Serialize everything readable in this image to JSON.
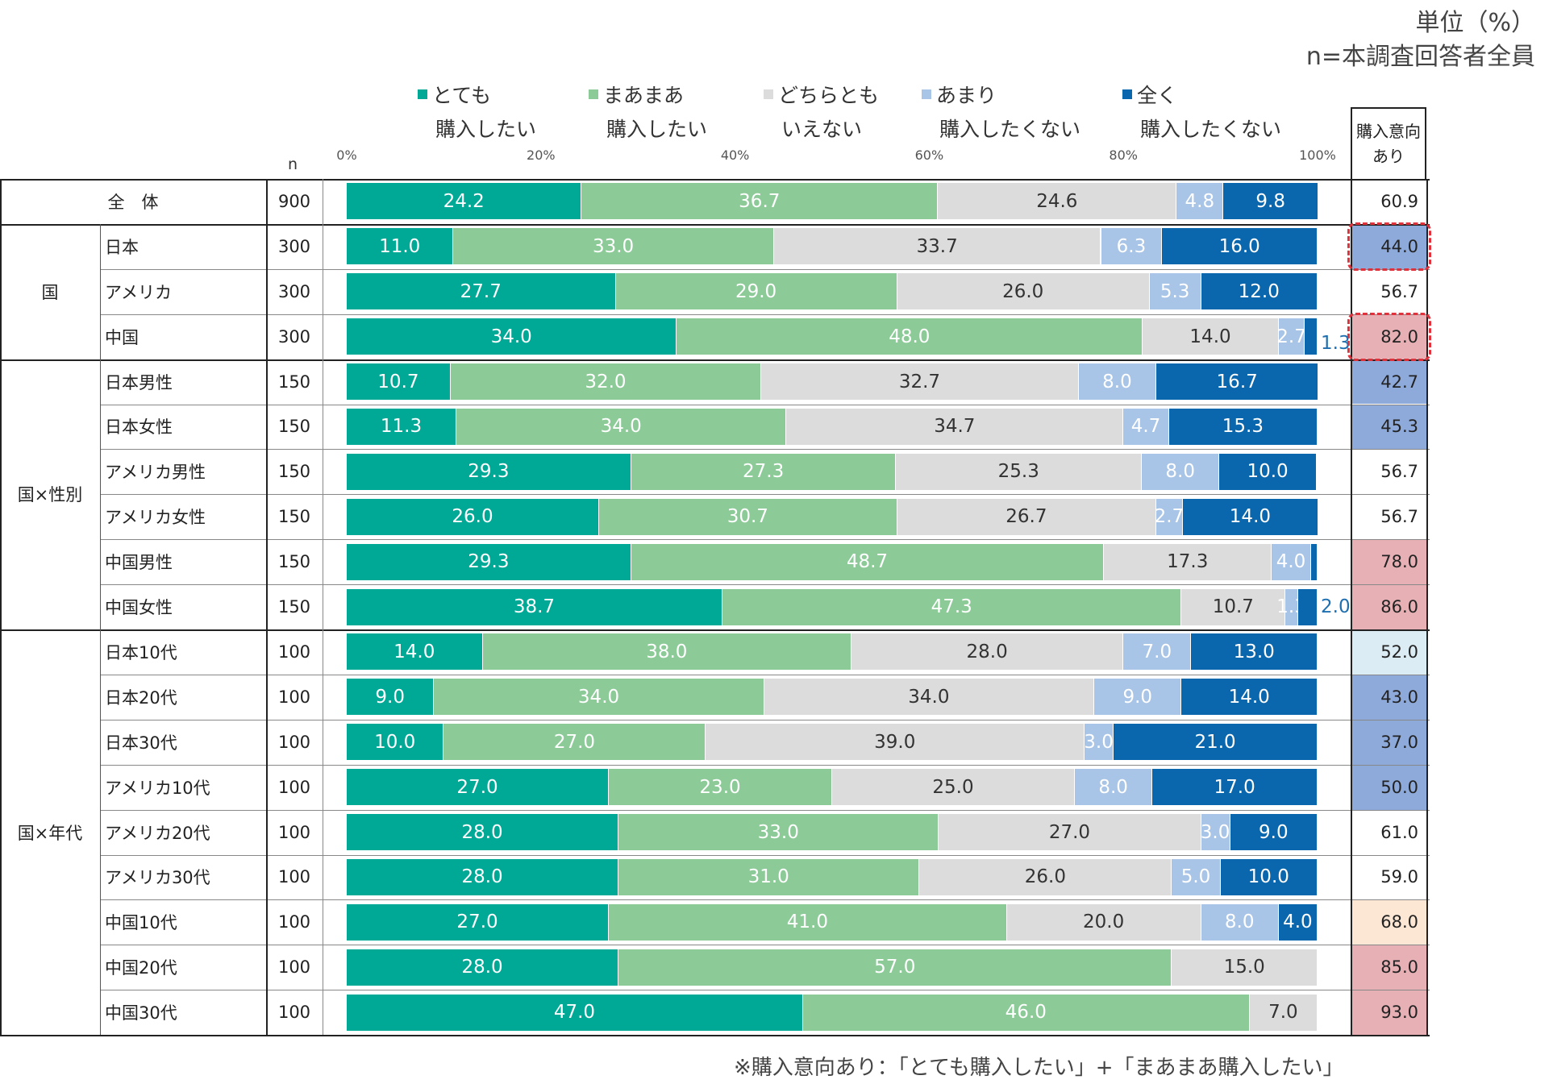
{
  "unit_note": [
    "単位（%）",
    "n=本調査回答者全員"
  ],
  "footnote": "※購入意向あり：「とても購入したい」+「まあまあ購入したい」",
  "intent_header": [
    "購入意向",
    "あり"
  ],
  "n_label": "n",
  "colors": {
    "very": "#00a896",
    "somewhat": "#8ccb98",
    "neutral": "#dcdcdc",
    "not_much": "#a8c4e6",
    "not_at_all": "#0a67ad",
    "intent_blue_dark": "#8eaadb",
    "intent_blue_light": "#dcecf4",
    "intent_red": "#e6b0b5",
    "intent_orange": "#fce7d5",
    "dashed_highlight": "#e0323c"
  },
  "chart_data": {
    "type": "bar",
    "orientation": "horizontal",
    "stacked": true,
    "percent_axis": true,
    "xlim": [
      0,
      100
    ],
    "x_ticks": [
      "0%",
      "20%",
      "40%",
      "60%",
      "80%",
      "100%"
    ],
    "legend": [
      {
        "line1": "とても",
        "line2": "購入したい",
        "color": "#00a896"
      },
      {
        "line1": "まあまあ",
        "line2": "購入したい",
        "color": "#8ccb98"
      },
      {
        "line1": "どちらとも",
        "line2": "いえない",
        "color": "#dcdcdc"
      },
      {
        "line1": "あまり",
        "line2": "購入したくない",
        "color": "#a8c4e6"
      },
      {
        "line1": "全く",
        "line2": "購入したくない",
        "color": "#0a67ad"
      }
    ],
    "groups": [
      {
        "label": "全　体",
        "start": 0,
        "end": 0
      },
      {
        "label": "国",
        "start": 1,
        "end": 3
      },
      {
        "label": "国×性別",
        "start": 4,
        "end": 9
      },
      {
        "label": "国×年代",
        "start": 10,
        "end": 18
      }
    ],
    "rows": [
      {
        "label": "",
        "n": "900",
        "values": [
          24.2,
          36.7,
          24.6,
          4.8,
          9.8
        ],
        "labels": [
          "24.2",
          "36.7",
          "24.6",
          "4.8",
          "9.8"
        ],
        "intent": "60.9",
        "intent_color": "none"
      },
      {
        "label": "日本",
        "n": "300",
        "values": [
          11.0,
          33.0,
          33.7,
          6.3,
          16.0
        ],
        "labels": [
          "11.0",
          "33.0",
          "33.7",
          "6.3",
          "16.0"
        ],
        "intent": "44.0",
        "intent_color": "blue_dark",
        "highlight": true
      },
      {
        "label": "アメリカ",
        "n": "300",
        "values": [
          27.7,
          29.0,
          26.0,
          5.3,
          12.0
        ],
        "labels": [
          "27.7",
          "29.0",
          "26.0",
          "5.3",
          "12.0"
        ],
        "intent": "56.7",
        "intent_color": "none"
      },
      {
        "label": "中国",
        "n": "300",
        "values": [
          34.0,
          48.0,
          14.0,
          2.7,
          1.3
        ],
        "labels": [
          "34.0",
          "48.0",
          "14.0",
          "2.7",
          "1.3"
        ],
        "intent": "82.0",
        "intent_color": "red",
        "highlight": true
      },
      {
        "label": "日本男性",
        "n": "150",
        "values": [
          10.7,
          32.0,
          32.7,
          8.0,
          16.7
        ],
        "labels": [
          "10.7",
          "32.0",
          "32.7",
          "8.0",
          "16.7"
        ],
        "intent": "42.7",
        "intent_color": "blue_dark"
      },
      {
        "label": "日本女性",
        "n": "150",
        "values": [
          11.3,
          34.0,
          34.7,
          4.7,
          15.3
        ],
        "labels": [
          "11.3",
          "34.0",
          "34.7",
          "4.7",
          "15.3"
        ],
        "intent": "45.3",
        "intent_color": "blue_dark"
      },
      {
        "label": "アメリカ男性",
        "n": "150",
        "values": [
          29.3,
          27.3,
          25.3,
          8.0,
          10.0
        ],
        "labels": [
          "29.3",
          "27.3",
          "25.3",
          "8.0",
          "10.0"
        ],
        "intent": "56.7",
        "intent_color": "none"
      },
      {
        "label": "アメリカ女性",
        "n": "150",
        "values": [
          26.0,
          30.7,
          26.7,
          2.7,
          14.0
        ],
        "labels": [
          "26.0",
          "30.7",
          "26.7",
          "2.7",
          "14.0"
        ],
        "intent": "56.7",
        "intent_color": "none"
      },
      {
        "label": "中国男性",
        "n": "150",
        "values": [
          29.3,
          48.7,
          17.3,
          4.0,
          0.7
        ],
        "labels": [
          "29.3",
          "48.7",
          "17.3",
          "4.0",
          ""
        ],
        "intent": "78.0",
        "intent_color": "red"
      },
      {
        "label": "中国女性",
        "n": "150",
        "values": [
          38.7,
          47.3,
          10.7,
          1.3,
          2.0
        ],
        "labels": [
          "38.7",
          "47.3",
          "10.7",
          "1.3",
          "2.0"
        ],
        "intent": "86.0",
        "intent_color": "red"
      },
      {
        "label": "日本10代",
        "n": "100",
        "values": [
          14.0,
          38.0,
          28.0,
          7.0,
          13.0
        ],
        "labels": [
          "14.0",
          "38.0",
          "28.0",
          "7.0",
          "13.0"
        ],
        "intent": "52.0",
        "intent_color": "blue_light"
      },
      {
        "label": "日本20代",
        "n": "100",
        "values": [
          9.0,
          34.0,
          34.0,
          9.0,
          14.0
        ],
        "labels": [
          "9.0",
          "34.0",
          "34.0",
          "9.0",
          "14.0"
        ],
        "intent": "43.0",
        "intent_color": "blue_dark"
      },
      {
        "label": "日本30代",
        "n": "100",
        "values": [
          10.0,
          27.0,
          39.0,
          3.0,
          21.0
        ],
        "labels": [
          "10.0",
          "27.0",
          "39.0",
          "3.0",
          "21.0"
        ],
        "intent": "37.0",
        "intent_color": "blue_dark"
      },
      {
        "label": "アメリカ10代",
        "n": "100",
        "values": [
          27.0,
          23.0,
          25.0,
          8.0,
          17.0
        ],
        "labels": [
          "27.0",
          "23.0",
          "25.0",
          "8.0",
          "17.0"
        ],
        "intent": "50.0",
        "intent_color": "blue_dark"
      },
      {
        "label": "アメリカ20代",
        "n": "100",
        "values": [
          28.0,
          33.0,
          27.0,
          3.0,
          9.0
        ],
        "labels": [
          "28.0",
          "33.0",
          "27.0",
          "3.0",
          "9.0"
        ],
        "intent": "61.0",
        "intent_color": "none"
      },
      {
        "label": "アメリカ30代",
        "n": "100",
        "values": [
          28.0,
          31.0,
          26.0,
          5.0,
          10.0
        ],
        "labels": [
          "28.0",
          "31.0",
          "26.0",
          "5.0",
          "10.0"
        ],
        "intent": "59.0",
        "intent_color": "none"
      },
      {
        "label": "中国10代",
        "n": "100",
        "values": [
          27.0,
          41.0,
          20.0,
          8.0,
          4.0
        ],
        "labels": [
          "27.0",
          "41.0",
          "20.0",
          "8.0",
          "4.0"
        ],
        "intent": "68.0",
        "intent_color": "orange"
      },
      {
        "label": "中国20代",
        "n": "100",
        "values": [
          28.0,
          57.0,
          15.0,
          0,
          0
        ],
        "labels": [
          "28.0",
          "57.0",
          "15.0",
          "",
          ""
        ],
        "intent": "85.0",
        "intent_color": "red"
      },
      {
        "label": "中国30代",
        "n": "100",
        "values": [
          47.0,
          46.0,
          7.0,
          0,
          0
        ],
        "labels": [
          "47.0",
          "46.0",
          "7.0",
          "",
          ""
        ],
        "intent": "93.0",
        "intent_color": "red"
      }
    ]
  }
}
